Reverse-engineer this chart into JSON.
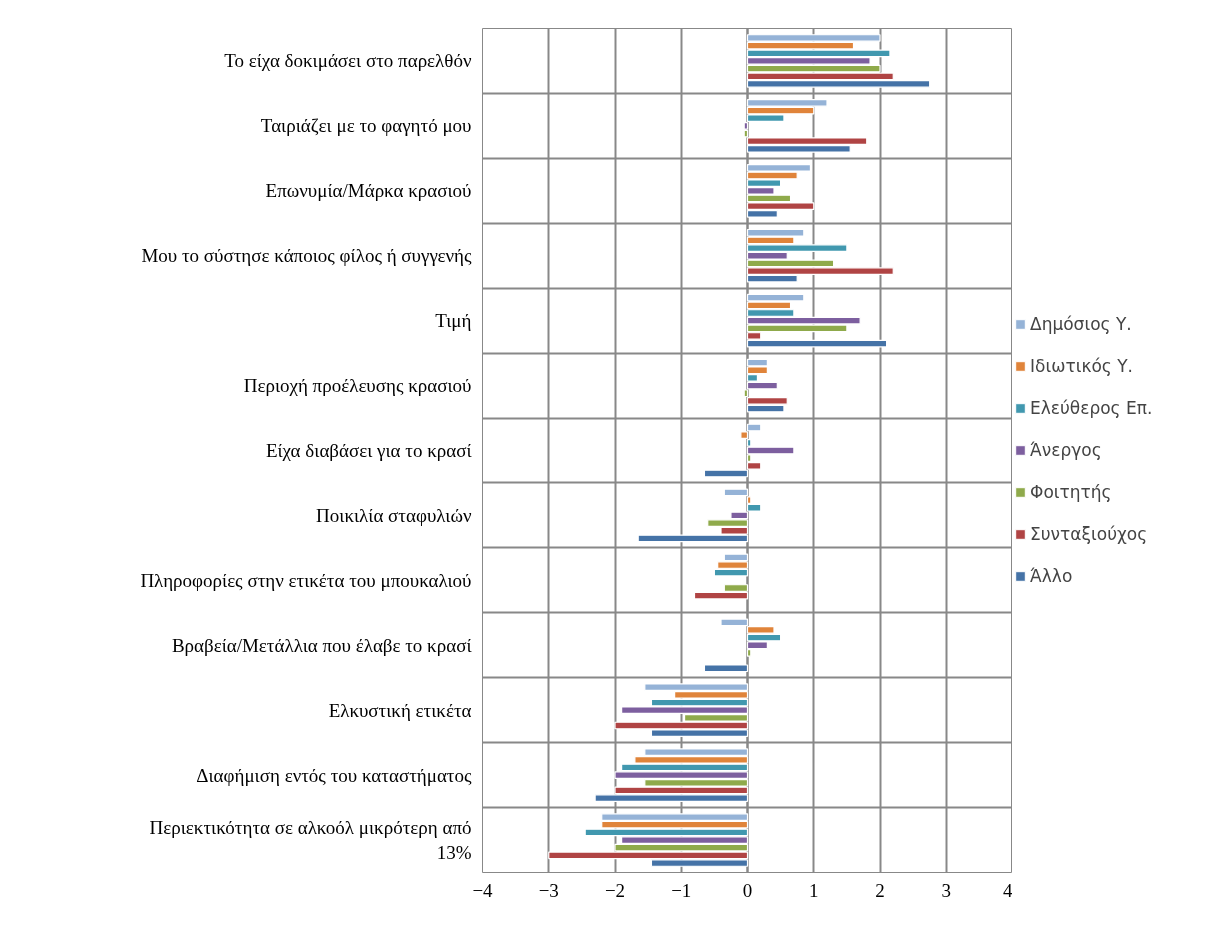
{
  "chart_data": {
    "type": "bar",
    "orientation": "horizontal",
    "categories": [
      "Το είχα δοκιμάσει στο παρελθόν",
      "Ταιριάζει με το φαγητό μου",
      "Επωνυμία/Μάρκα κρασιού",
      "Μου το σύστησε κάποιος φίλος ή συγγενής",
      "Τιμή",
      "Περιοχή προέλευσης κρασιού",
      "Είχα διαβάσει για το κρασί",
      "Ποικιλία σταφυλιών",
      "Πληροφορίες στην ετικέτα του μπουκαλιού",
      "Βραβεία/Μετάλλια που έλαβε το κρασί",
      "Ελκυστική ετικέτα",
      "Διαφήμιση εντός του καταστήματος",
      "Περιεκτικότητα σε αλκοόλ μικρότερη από 13%"
    ],
    "series": [
      {
        "name": "Δημόσιος Υ.",
        "color": "#95b3d7",
        "values": [
          2.0,
          1.2,
          0.95,
          0.85,
          0.85,
          0.3,
          0.2,
          -0.35,
          -0.35,
          -0.4,
          -1.55,
          -1.55,
          -2.2
        ]
      },
      {
        "name": "Ιδιωτικός Υ.",
        "color": "#e0843a",
        "values": [
          1.6,
          1.0,
          0.75,
          0.7,
          0.65,
          0.3,
          -0.1,
          0.05,
          -0.45,
          0.4,
          -1.1,
          -1.7,
          -2.2
        ]
      },
      {
        "name": "Ελεύθερος Επ.",
        "color": "#4198af",
        "values": [
          2.15,
          0.55,
          0.5,
          1.5,
          0.7,
          0.15,
          0.05,
          0.2,
          -0.5,
          0.5,
          -1.45,
          -1.9,
          -2.45
        ]
      },
      {
        "name": "Άνεργος",
        "color": "#7d5f9f",
        "values": [
          1.85,
          -0.05,
          0.4,
          0.6,
          1.7,
          0.45,
          0.7,
          -0.25,
          null,
          0.3,
          -1.9,
          -2.0,
          -1.9
        ]
      },
      {
        "name": "Φοιτητής",
        "color": "#8faa4b",
        "values": [
          2.0,
          -0.05,
          0.65,
          1.3,
          1.5,
          -0.05,
          0.05,
          -0.6,
          -0.35,
          0.05,
          -0.95,
          -1.55,
          -2.0
        ]
      },
      {
        "name": "Συνταξιούχος",
        "color": "#b04444",
        "values": [
          2.2,
          1.8,
          1.0,
          2.2,
          0.2,
          0.6,
          0.2,
          -0.4,
          -0.8,
          null,
          -2.0,
          -2.0,
          -3.0
        ]
      },
      {
        "name": "Άλλο",
        "color": "#4573a7",
        "values": [
          2.75,
          1.55,
          0.45,
          0.75,
          2.1,
          0.55,
          -0.65,
          -1.65,
          null,
          -0.65,
          -1.45,
          -2.3,
          -1.45
        ]
      }
    ],
    "xlim": [
      -4,
      4
    ],
    "xticks": [
      -4,
      -3,
      -2,
      -1,
      0,
      1,
      2,
      3,
      4
    ],
    "grid": true,
    "legend": "right"
  }
}
